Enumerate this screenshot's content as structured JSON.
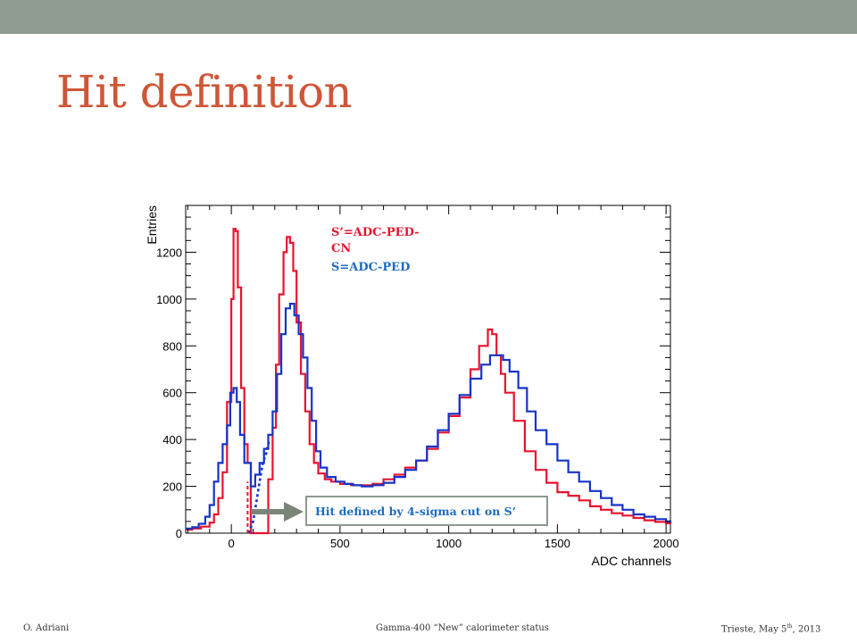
{
  "slide": {
    "title": "Hit definition"
  },
  "footer": {
    "left": "O. Adriani",
    "center": "Gamma-400 “New” calorimeter status",
    "right_prefix": "Trieste, May 5",
    "right_sup": "th",
    "right_suffix": ", 2013"
  },
  "chart_data": {
    "type": "line",
    "title": "",
    "xlabel": "ADC channels",
    "ylabel": "Entries",
    "xlim": [
      -210,
      2020
    ],
    "ylim": [
      0,
      1400
    ],
    "xticks": [
      0,
      500,
      1000,
      1500,
      2000
    ],
    "yticks": [
      0,
      200,
      400,
      600,
      800,
      1000,
      1200
    ],
    "grid": false,
    "legend": [
      "S’=ADC-PED-CN",
      "S=ADC-PED"
    ],
    "series": [
      {
        "name": "S’=ADC-PED-CN",
        "color": "#e8132f",
        "points": [
          [
            -210,
            15
          ],
          [
            -180,
            20
          ],
          [
            -140,
            28
          ],
          [
            -100,
            45
          ],
          [
            -80,
            80
          ],
          [
            -60,
            150
          ],
          [
            -40,
            260
          ],
          [
            -20,
            560
          ],
          [
            0,
            1000
          ],
          [
            10,
            1300
          ],
          [
            20,
            1290
          ],
          [
            30,
            1050
          ],
          [
            45,
            620
          ],
          [
            60,
            380
          ],
          [
            75,
            300
          ],
          [
            90,
            0
          ],
          [
            150,
            0
          ],
          [
            170,
            230
          ],
          [
            190,
            450
          ],
          [
            205,
            720
          ],
          [
            220,
            1020
          ],
          [
            240,
            1200
          ],
          [
            255,
            1265
          ],
          [
            270,
            1240
          ],
          [
            285,
            1120
          ],
          [
            300,
            900
          ],
          [
            320,
            680
          ],
          [
            340,
            520
          ],
          [
            360,
            380
          ],
          [
            380,
            300
          ],
          [
            400,
            255
          ],
          [
            430,
            230
          ],
          [
            460,
            220
          ],
          [
            500,
            210
          ],
          [
            550,
            205
          ],
          [
            600,
            205
          ],
          [
            650,
            210
          ],
          [
            700,
            230
          ],
          [
            750,
            250
          ],
          [
            800,
            280
          ],
          [
            850,
            310
          ],
          [
            900,
            360
          ],
          [
            950,
            430
          ],
          [
            1000,
            500
          ],
          [
            1050,
            580
          ],
          [
            1100,
            700
          ],
          [
            1140,
            800
          ],
          [
            1180,
            870
          ],
          [
            1200,
            850
          ],
          [
            1220,
            760
          ],
          [
            1240,
            680
          ],
          [
            1260,
            600
          ],
          [
            1300,
            480
          ],
          [
            1350,
            350
          ],
          [
            1400,
            270
          ],
          [
            1450,
            215
          ],
          [
            1500,
            175
          ],
          [
            1550,
            160
          ],
          [
            1600,
            140
          ],
          [
            1650,
            115
          ],
          [
            1700,
            100
          ],
          [
            1750,
            85
          ],
          [
            1800,
            75
          ],
          [
            1850,
            65
          ],
          [
            1900,
            55
          ],
          [
            1950,
            48
          ],
          [
            2000,
            42
          ],
          [
            2020,
            40
          ]
        ]
      },
      {
        "name": "S=ADC-PED",
        "color": "#1534c8",
        "points": [
          [
            -210,
            20
          ],
          [
            -180,
            25
          ],
          [
            -150,
            40
          ],
          [
            -120,
            70
          ],
          [
            -100,
            120
          ],
          [
            -80,
            220
          ],
          [
            -60,
            300
          ],
          [
            -40,
            380
          ],
          [
            -20,
            460
          ],
          [
            -5,
            600
          ],
          [
            10,
            620
          ],
          [
            25,
            560
          ],
          [
            40,
            420
          ],
          [
            60,
            300
          ],
          [
            90,
            200
          ],
          [
            110,
            250
          ],
          [
            130,
            300
          ],
          [
            150,
            360
          ],
          [
            170,
            420
          ],
          [
            190,
            520
          ],
          [
            210,
            680
          ],
          [
            230,
            850
          ],
          [
            250,
            960
          ],
          [
            270,
            980
          ],
          [
            290,
            930
          ],
          [
            310,
            850
          ],
          [
            330,
            750
          ],
          [
            350,
            620
          ],
          [
            370,
            480
          ],
          [
            390,
            350
          ],
          [
            410,
            280
          ],
          [
            440,
            240
          ],
          [
            480,
            220
          ],
          [
            520,
            210
          ],
          [
            560,
            205
          ],
          [
            600,
            200
          ],
          [
            650,
            205
          ],
          [
            700,
            215
          ],
          [
            750,
            240
          ],
          [
            800,
            270
          ],
          [
            850,
            310
          ],
          [
            900,
            370
          ],
          [
            950,
            440
          ],
          [
            1000,
            510
          ],
          [
            1050,
            590
          ],
          [
            1100,
            660
          ],
          [
            1150,
            720
          ],
          [
            1190,
            760
          ],
          [
            1220,
            760
          ],
          [
            1250,
            740
          ],
          [
            1280,
            690
          ],
          [
            1320,
            620
          ],
          [
            1360,
            520
          ],
          [
            1400,
            440
          ],
          [
            1450,
            380
          ],
          [
            1500,
            310
          ],
          [
            1550,
            260
          ],
          [
            1600,
            220
          ],
          [
            1650,
            180
          ],
          [
            1700,
            150
          ],
          [
            1750,
            120
          ],
          [
            1800,
            100
          ],
          [
            1850,
            80
          ],
          [
            1900,
            70
          ],
          [
            1950,
            60
          ],
          [
            2000,
            50
          ],
          [
            2020,
            45
          ]
        ]
      },
      {
        "name": "",
        "color": "#1534c8",
        "dashed": true,
        "points": [
          [
            80,
            0
          ],
          [
            100,
            50
          ],
          [
            115,
            130
          ],
          [
            130,
            220
          ],
          [
            145,
            300
          ],
          [
            160,
            340
          ],
          [
            175,
            400
          ]
        ]
      }
    ],
    "annotations": {
      "cut_line": {
        "x": 75,
        "color": "#e8132f"
      },
      "callout": {
        "text": "Hit defined by 4-sigma cut on S’",
        "color": "#1e6bc0"
      },
      "legend_colors": {
        "red": "#e8132f",
        "blue": "#1e6bc0"
      }
    }
  }
}
